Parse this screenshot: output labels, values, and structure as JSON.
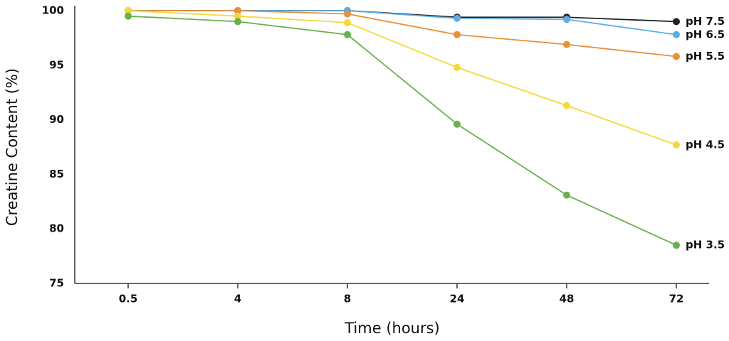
{
  "chart_data": {
    "type": "line",
    "x_label": "Time (hours)",
    "y_label": "Creatine Content (%)",
    "categories": [
      "0.5",
      "4",
      "8",
      "24",
      "48",
      "72"
    ],
    "series": [
      {
        "name": "pH 7.5",
        "color": "#222222",
        "values": [
          100,
          100,
          100,
          99.4,
          99.4,
          99.0
        ]
      },
      {
        "name": "pH 6.5",
        "color": "#5dade2",
        "values": [
          100,
          100,
          100,
          99.3,
          99.2,
          97.8
        ]
      },
      {
        "name": "pH 5.5",
        "color": "#e8903a",
        "values": [
          100,
          100,
          99.7,
          97.8,
          96.9,
          95.8
        ]
      },
      {
        "name": "pH 4.5",
        "color": "#f5d93a",
        "values": [
          100,
          99.5,
          98.9,
          94.8,
          91.3,
          87.7
        ]
      },
      {
        "name": "pH 3.5",
        "color": "#6ab04c",
        "values": [
          99.5,
          99.0,
          97.8,
          89.6,
          83.1,
          78.5
        ]
      }
    ],
    "ylim": [
      75,
      100
    ],
    "yticks": [
      75,
      80,
      85,
      90,
      95,
      100
    ],
    "grid": false
  }
}
